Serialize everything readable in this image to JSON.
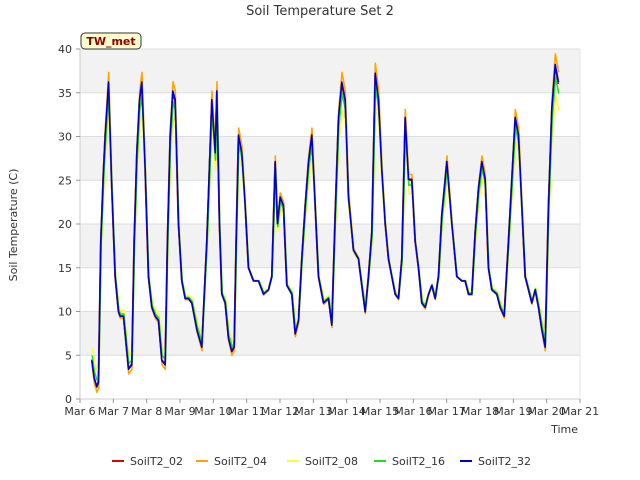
{
  "chart_data": {
    "type": "line",
    "title": "Soil Temperature Set 2",
    "xlabel": "Time",
    "ylabel": "Soil Temperature (C)",
    "badge": "TW_met",
    "xlim": [
      6,
      21
    ],
    "ylim": [
      0,
      40
    ],
    "x_ticks": [
      6,
      7,
      8,
      9,
      10,
      11,
      12,
      13,
      14,
      15,
      16,
      17,
      18,
      19,
      20,
      21
    ],
    "x_tick_labels": [
      "Mar 6",
      "Mar 7",
      "Mar 8",
      "Mar 9",
      "Mar 10",
      "Mar 11",
      "Mar 12",
      "Mar 13",
      "Mar 14",
      "Mar 15",
      "Mar 16",
      "Mar 17",
      "Mar 18",
      "Mar 19",
      "Mar 20",
      "Mar 21"
    ],
    "y_ticks": [
      0,
      5,
      10,
      15,
      20,
      25,
      30,
      35,
      40
    ],
    "y_tick_labels": [
      "0",
      "5",
      "10",
      "15",
      "20",
      "25",
      "30",
      "35",
      "40"
    ],
    "grid": true,
    "legend_position": "bottom",
    "base_series": {
      "x": [
        6.35,
        6.42,
        6.5,
        6.55,
        6.62,
        6.7,
        6.75,
        6.85,
        6.95,
        7.05,
        7.15,
        7.2,
        7.3,
        7.45,
        7.55,
        7.62,
        7.7,
        7.78,
        7.85,
        7.95,
        8.05,
        8.15,
        8.25,
        8.35,
        8.45,
        8.55,
        8.62,
        8.7,
        8.78,
        8.85,
        8.95,
        9.05,
        9.15,
        9.25,
        9.35,
        9.5,
        9.65,
        9.8,
        9.95,
        10.05,
        10.1,
        10.18,
        10.25,
        10.35,
        10.45,
        10.55,
        10.62,
        10.68,
        10.75,
        10.85,
        10.95,
        11.05,
        11.2,
        11.35,
        11.5,
        11.65,
        11.75,
        11.85,
        11.92,
        12.0,
        12.1,
        12.2,
        12.35,
        12.45,
        12.55,
        12.65,
        12.75,
        12.85,
        12.95,
        13.05,
        13.15,
        13.3,
        13.45,
        13.55,
        13.65,
        13.75,
        13.85,
        13.95,
        14.05,
        14.2,
        14.35,
        14.45,
        14.55,
        14.65,
        14.75,
        14.85,
        14.95,
        15.05,
        15.15,
        15.25,
        15.35,
        15.45,
        15.55,
        15.65,
        15.75,
        15.85,
        15.95,
        16.05,
        16.15,
        16.25,
        16.35,
        16.45,
        16.55,
        16.65,
        16.75,
        16.85,
        17.0,
        17.15,
        17.3,
        17.45,
        17.55,
        17.65,
        17.75,
        17.85,
        17.95,
        18.05,
        18.15,
        18.25,
        18.35,
        18.5,
        18.6,
        18.72,
        18.85,
        18.95,
        19.05,
        19.15,
        19.25,
        19.35,
        19.45,
        19.55,
        19.65,
        19.75,
        19.85,
        19.95,
        20.05,
        20.15,
        20.25,
        20.35
      ],
      "y": [
        4.5,
        2.5,
        1.5,
        2.0,
        18.0,
        26.0,
        30.0,
        36.0,
        24.0,
        14.0,
        10.0,
        9.5,
        9.5,
        3.5,
        4.0,
        18.0,
        28.0,
        34.0,
        36.0,
        26.0,
        14.0,
        10.5,
        9.5,
        9.0,
        4.5,
        4.0,
        18.0,
        30.0,
        35.0,
        34.0,
        20.0,
        13.5,
        11.5,
        11.5,
        11.0,
        8.0,
        6.0,
        18.0,
        34.0,
        28.0,
        35.0,
        20.0,
        12.0,
        11.0,
        7.0,
        5.5,
        6.0,
        18.0,
        30.0,
        28.0,
        22.0,
        15.0,
        13.5,
        13.5,
        12.0,
        12.5,
        14.0,
        27.0,
        20.0,
        23.0,
        22.0,
        13.0,
        12.0,
        7.5,
        9.0,
        16.0,
        22.0,
        27.0,
        30.0,
        22.0,
        14.0,
        11.0,
        11.5,
        8.5,
        21.0,
        32.0,
        36.0,
        34.0,
        23.0,
        17.0,
        16.0,
        13.0,
        10.0,
        14.0,
        19.0,
        37.0,
        34.0,
        26.0,
        20.0,
        16.0,
        14.0,
        12.0,
        11.5,
        16.0,
        32.0,
        25.0,
        25.0,
        18.0,
        15.0,
        11.0,
        10.5,
        12.0,
        13.0,
        11.5,
        14.0,
        21.0,
        27.0,
        20.0,
        14.0,
        13.5,
        13.5,
        12.0,
        12.0,
        19.0,
        24.0,
        27.0,
        25.0,
        15.0,
        12.5,
        12.0,
        10.5,
        9.5,
        18.0,
        25.0,
        32.0,
        30.0,
        22.0,
        14.0,
        12.5,
        11.0,
        12.5,
        10.5,
        8.0,
        6.0,
        22.0,
        33.0,
        38.0,
        36.0
      ]
    },
    "series": [
      {
        "name": "SoilT2_02",
        "color": "#dd0000",
        "amp": 1.0,
        "phase": 0.0
      },
      {
        "name": "SoilT2_04",
        "color": "#ffa500",
        "amp": 1.06,
        "phase": 0.01
      },
      {
        "name": "SoilT2_08",
        "color": "#ffff33",
        "amp": 0.86,
        "phase": 0.02
      },
      {
        "name": "SoilT2_16",
        "color": "#22dd22",
        "amp": 0.95,
        "phase": 0.015
      },
      {
        "name": "SoilT2_32",
        "color": "#0000cc",
        "amp": 1.01,
        "phase": 0.005
      }
    ]
  }
}
